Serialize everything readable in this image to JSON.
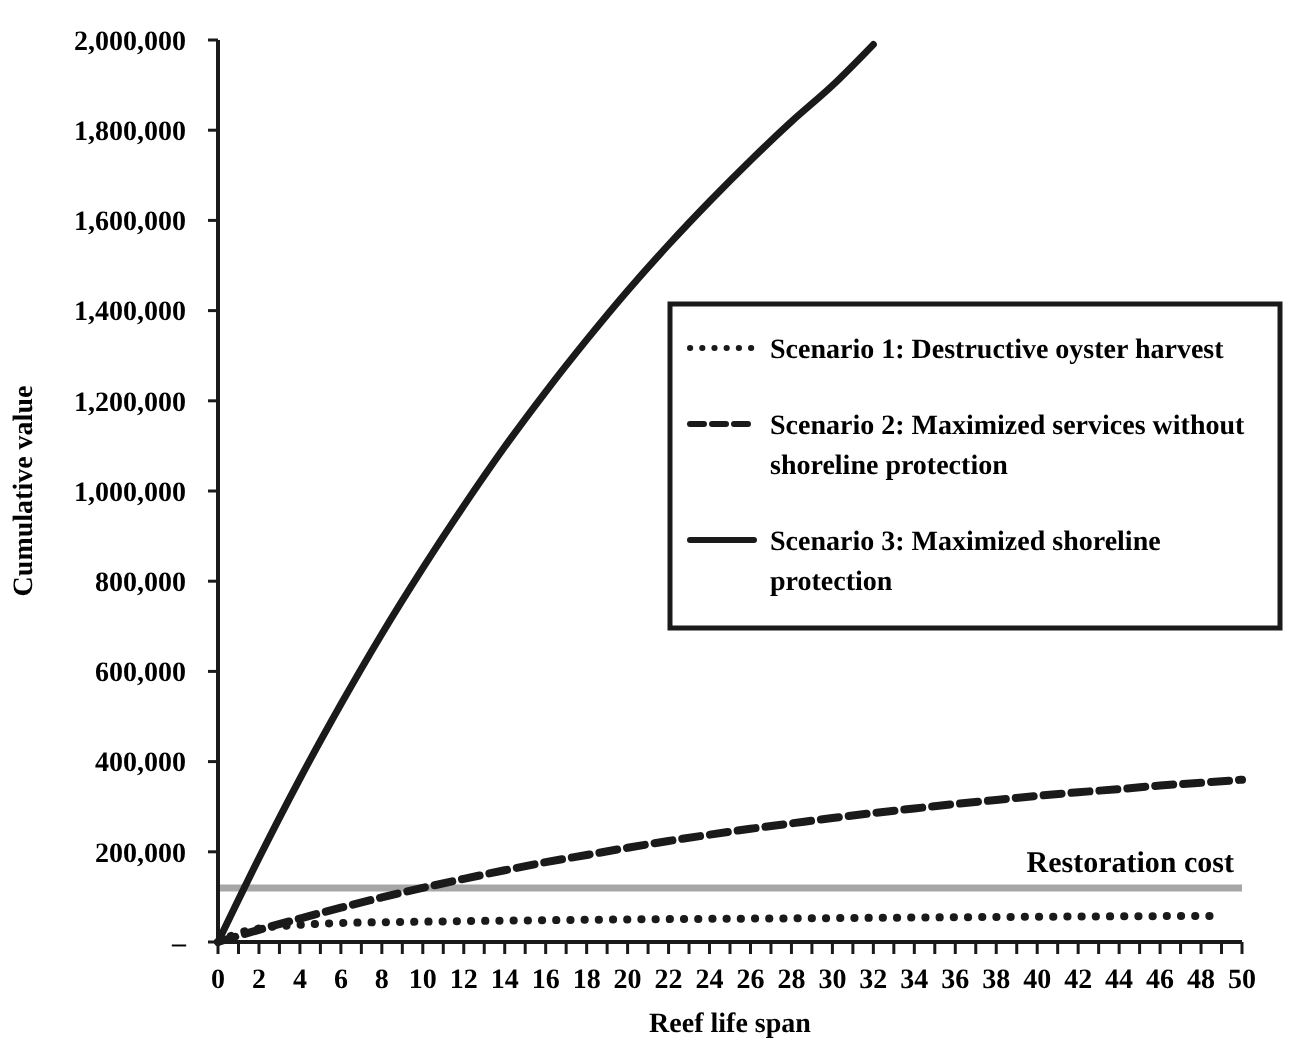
{
  "chart_data": {
    "type": "line",
    "xlabel": "Reef life span",
    "ylabel": "Cumulative value",
    "xlim": [
      0,
      50
    ],
    "ylim": [
      0,
      2000000
    ],
    "xticks": [
      0,
      {
        "value": 1,
        "label": null
      },
      2,
      {
        "value": 3,
        "label": null
      },
      4,
      {
        "value": 5,
        "label": null
      },
      6,
      {
        "value": 7,
        "label": null
      },
      8,
      {
        "value": 9,
        "label": null
      },
      10,
      {
        "value": 11,
        "label": null
      },
      12,
      {
        "value": 13,
        "label": null
      },
      14,
      {
        "value": 15,
        "label": null
      },
      16,
      {
        "value": 17,
        "label": null
      },
      18,
      {
        "value": 19,
        "label": null
      },
      20,
      {
        "value": 21,
        "label": null
      },
      22,
      {
        "value": 23,
        "label": null
      },
      24,
      {
        "value": 25,
        "label": null
      },
      26,
      {
        "value": 27,
        "label": null
      },
      28,
      {
        "value": 29,
        "label": null
      },
      30,
      {
        "value": 31,
        "label": null
      },
      32,
      {
        "value": 33,
        "label": null
      },
      34,
      {
        "value": 35,
        "label": null
      },
      36,
      {
        "value": 37,
        "label": null
      },
      38,
      {
        "value": 39,
        "label": null
      },
      40,
      {
        "value": 41,
        "label": null
      },
      42,
      {
        "value": 43,
        "label": null
      },
      44,
      {
        "value": 45,
        "label": null
      },
      46,
      {
        "value": 47,
        "label": null
      },
      48,
      {
        "value": 49,
        "label": null
      },
      50
    ],
    "yticks": [
      {
        "value": 0,
        "label": "–"
      },
      {
        "value": 200000,
        "label": "200,000"
      },
      {
        "value": 400000,
        "label": "400,000"
      },
      {
        "value": 600000,
        "label": "600,000"
      },
      {
        "value": 800000,
        "label": "800,000"
      },
      {
        "value": 1000000,
        "label": "1,000,000"
      },
      {
        "value": 1200000,
        "label": "1,200,000"
      },
      {
        "value": 1400000,
        "label": "1,400,000"
      },
      {
        "value": 1600000,
        "label": "1,600,000"
      },
      {
        "value": 1800000,
        "label": "1,800,000"
      },
      {
        "value": 2000000,
        "label": "2,000,000"
      }
    ],
    "grid": false,
    "legend": "right",
    "marker": "none",
    "series": [
      {
        "name": "Scenario 1: Destructive oyster harvest",
        "color": "#1a1a1a",
        "line_style": "dotted",
        "x": [
          0,
          1,
          2,
          4,
          6,
          10,
          20,
          30,
          40,
          49
        ],
        "values": [
          0,
          20000,
          30000,
          38000,
          42000,
          45000,
          50000,
          53000,
          56000,
          58000
        ]
      },
      {
        "name": "Scenario 2: Maximized services without shoreline protection",
        "color": "#1a1a1a",
        "line_style": "dashed",
        "x": [
          0,
          2,
          4,
          6,
          8,
          10,
          12,
          14,
          16,
          18,
          20,
          22,
          24,
          26,
          28,
          30,
          32,
          34,
          36,
          38,
          40,
          42,
          44,
          46,
          48,
          50
        ],
        "values": [
          0,
          27000,
          52000,
          76000,
          99000,
          120000,
          140000,
          159000,
          177000,
          193000,
          209000,
          224000,
          238000,
          251000,
          263000,
          275000,
          286000,
          296000,
          306000,
          315000,
          324000,
          332000,
          339000,
          347000,
          353000,
          360000
        ]
      },
      {
        "name": "Scenario 3: Maximized shoreline protection",
        "color": "#1a1a1a",
        "line_style": "solid",
        "x": [
          0,
          2,
          4,
          6,
          8,
          10,
          12,
          14,
          16,
          18,
          20,
          22,
          24,
          26,
          28,
          30,
          32
        ],
        "values": [
          0,
          186000,
          362000,
          527000,
          683000,
          829000,
          967000,
          1098000,
          1220000,
          1335000,
          1444000,
          1546000,
          1642000,
          1733000,
          1819000,
          1899000,
          1990000
        ]
      }
    ],
    "ref_lines": [
      {
        "axis": "y",
        "value": 120000,
        "label": "Restoration cost",
        "color": "#a6a6a6"
      }
    ]
  }
}
